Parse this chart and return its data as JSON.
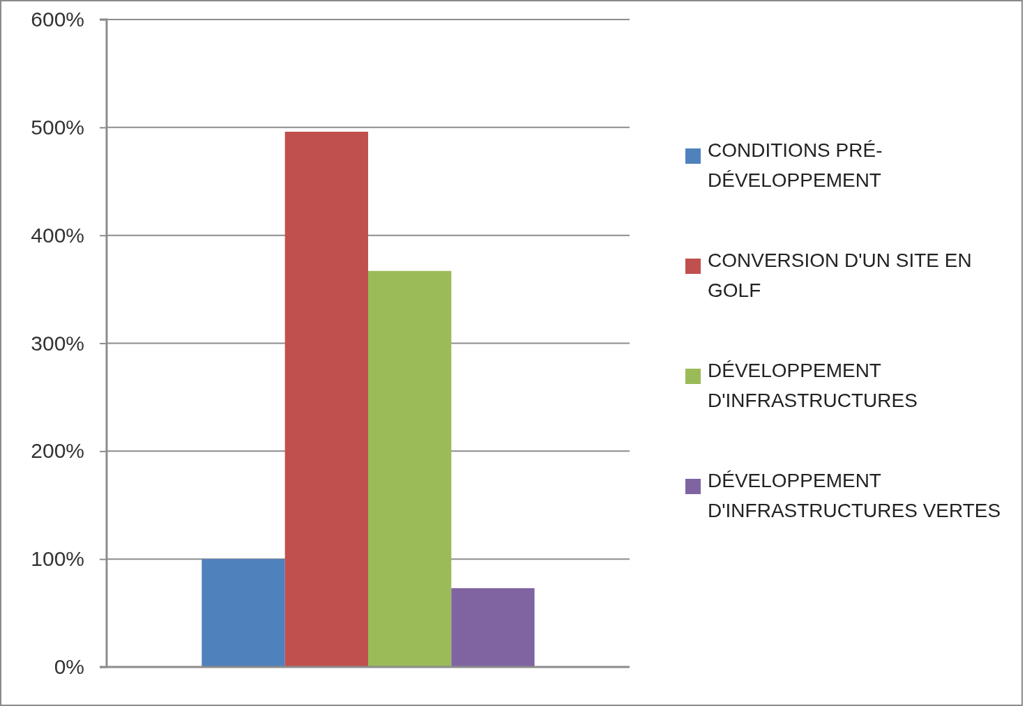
{
  "chart_data": {
    "type": "bar",
    "categories": [
      null
    ],
    "series": [
      {
        "name": "CONDITIONS PRÉ-DÉVELOPPEMENT",
        "color": "#4f81bd",
        "values": [
          100
        ]
      },
      {
        "name": "CONVERSION D'UN SITE EN GOLF",
        "color": "#c0504d",
        "values": [
          496
        ]
      },
      {
        "name": "DÉVELOPPEMENT D'INFRASTRUCTURES",
        "color": "#9bbb59",
        "values": [
          367
        ]
      },
      {
        "name": "DÉVELOPPEMENT D'INFRASTRUCTURES VERTES",
        "color": "#8064a2",
        "values": [
          73
        ]
      }
    ],
    "ylim": [
      0,
      600
    ],
    "yticks": [
      {
        "value": 0,
        "label": "0%"
      },
      {
        "value": 100,
        "label": "100%"
      },
      {
        "value": 200,
        "label": "200%"
      },
      {
        "value": 300,
        "label": "300%"
      },
      {
        "value": 400,
        "label": "400%"
      },
      {
        "value": 500,
        "label": "500%"
      },
      {
        "value": 600,
        "label": "600%"
      }
    ],
    "grid": "y",
    "legend": "right",
    "tick_labels": "y"
  }
}
